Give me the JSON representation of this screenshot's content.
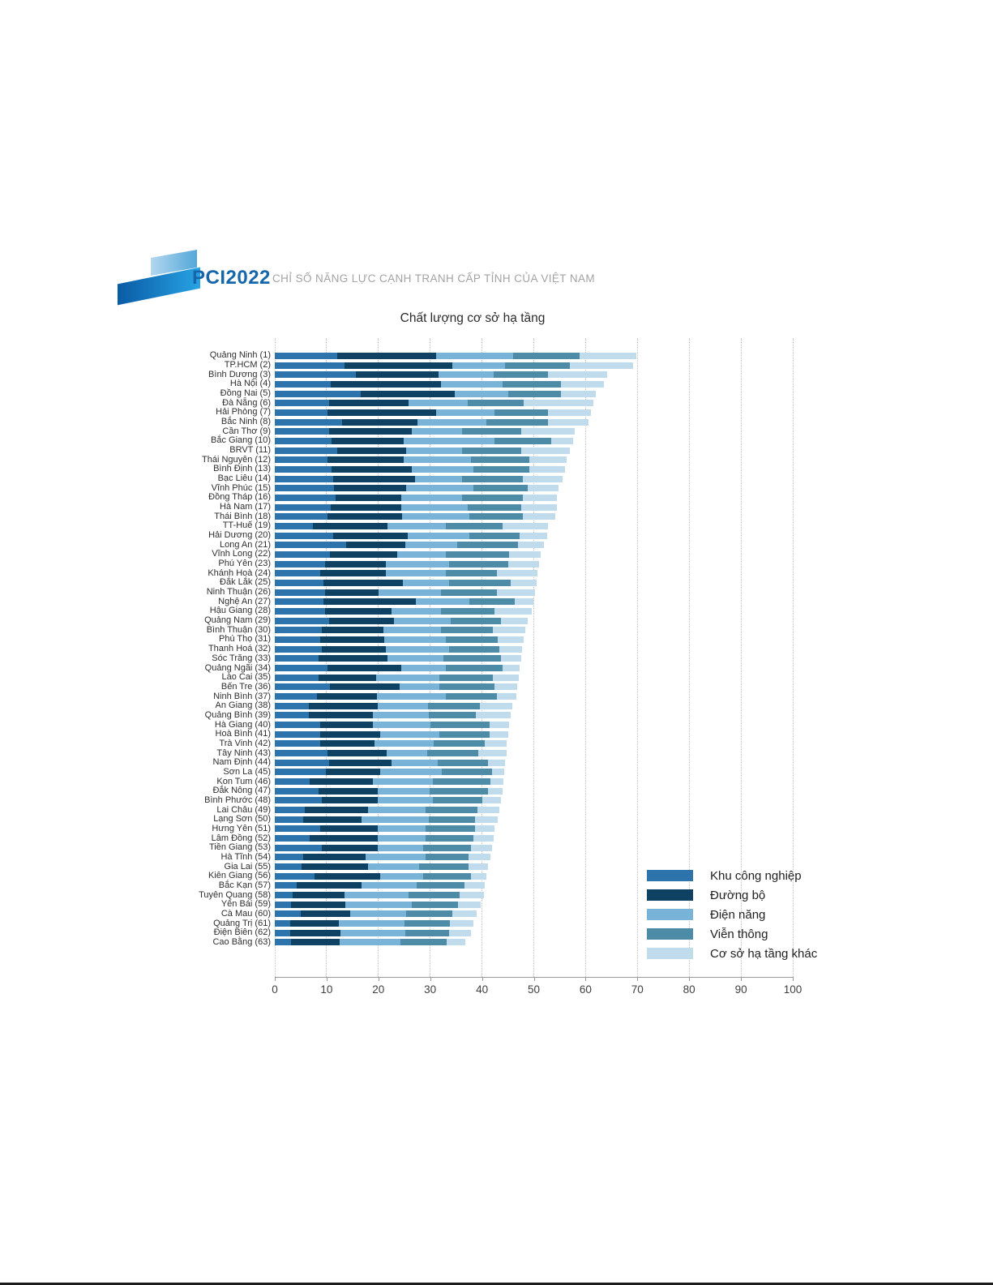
{
  "header": {
    "logo_text": "PCI2022",
    "subtitle": "CHỈ SỐ NĂNG LỰC CẠNH TRANH CẤP TỈNH CỦA VIỆT NAM"
  },
  "chart_data": {
    "type": "bar",
    "orientation": "horizontal",
    "stacked": true,
    "title": "Chất lượng cơ sở hạ tầng",
    "xlabel": "",
    "ylabel": "",
    "xlim": [
      0,
      100
    ],
    "x_ticks": [
      0,
      10,
      20,
      30,
      40,
      50,
      60,
      70,
      80,
      90,
      100
    ],
    "grid": "vertical-dotted",
    "legend_position": "bottom-right",
    "series": [
      {
        "name": "Khu công nghiệp",
        "color": "#2e74ac"
      },
      {
        "name": "Đường bộ",
        "color": "#0f4163"
      },
      {
        "name": "Điện năng",
        "color": "#7ab3d8"
      },
      {
        "name": "Viễn thông",
        "color": "#4e8ba7"
      },
      {
        "name": "Cơ sở hạ tầng khác",
        "color": "#c0dbec"
      }
    ],
    "categories": [
      {
        "label": "Quảng Ninh (1)",
        "values": [
          12.1,
          19.0,
          14.9,
          12.9,
          10.9
        ]
      },
      {
        "label": "TP.HCM (2)",
        "values": [
          13.5,
          20.7,
          10.3,
          12.4,
          12.3
        ]
      },
      {
        "label": "Bình Dương (3)",
        "values": [
          15.6,
          16.0,
          10.7,
          10.4,
          11.4
        ]
      },
      {
        "label": "Hà Nội (4)",
        "values": [
          10.8,
          21.3,
          11.9,
          11.3,
          8.3
        ]
      },
      {
        "label": "Đồng Nai (5)",
        "values": [
          16.6,
          18.1,
          10.3,
          10.3,
          6.7
        ]
      },
      {
        "label": "Đà Nẵng (6)",
        "values": [
          10.5,
          15.4,
          11.4,
          10.8,
          13.4
        ]
      },
      {
        "label": "Hải Phòng (7)",
        "values": [
          10.2,
          20.9,
          11.3,
          10.3,
          8.3
        ]
      },
      {
        "label": "Bắc Ninh (8)",
        "values": [
          13.0,
          14.5,
          13.4,
          11.8,
          7.8
        ]
      },
      {
        "label": "Cần Thơ (9)",
        "values": [
          10.5,
          15.9,
          9.8,
          11.4,
          10.3
        ]
      },
      {
        "label": "Bắc Giang (10)",
        "values": [
          11.0,
          13.9,
          17.5,
          10.9,
          4.3
        ]
      },
      {
        "label": "BRVT (11)",
        "values": [
          12.0,
          13.4,
          10.8,
          11.4,
          9.3
        ]
      },
      {
        "label": "Thái Nguyên (12)",
        "values": [
          10.2,
          14.7,
          12.9,
          11.3,
          7.2
        ]
      },
      {
        "label": "Bình Định (13)",
        "values": [
          11.0,
          15.4,
          11.9,
          10.8,
          7.0
        ]
      },
      {
        "label": "Bạc Liêu (14)",
        "values": [
          11.2,
          15.8,
          9.2,
          11.7,
          7.6
        ]
      },
      {
        "label": "Vĩnh Phúc (15)",
        "values": [
          11.5,
          13.9,
          12.9,
          10.6,
          5.9
        ]
      },
      {
        "label": "Đồng Tháp (16)",
        "values": [
          11.8,
          12.6,
          11.8,
          11.7,
          6.6
        ]
      },
      {
        "label": "Hà Nam (17)",
        "values": [
          10.8,
          13.6,
          12.9,
          10.3,
          6.8
        ]
      },
      {
        "label": "Thái Bình (18)",
        "values": [
          10.1,
          14.5,
          12.9,
          10.4,
          6.2
        ]
      },
      {
        "label": "TT-Huế (19)",
        "values": [
          7.3,
          14.5,
          11.3,
          10.9,
          8.7
        ]
      },
      {
        "label": "Hải Dương (20)",
        "values": [
          11.2,
          14.4,
          12.0,
          9.7,
          5.3
        ]
      },
      {
        "label": "Long An (21)",
        "values": [
          13.8,
          11.4,
          10.0,
          11.7,
          5.0
        ]
      },
      {
        "label": "Vĩnh Long (22)",
        "values": [
          10.7,
          13.0,
          9.4,
          12.1,
          6.2
        ]
      },
      {
        "label": "Phú Yên (23)",
        "values": [
          9.7,
          11.8,
          12.2,
          11.3,
          6.0
        ]
      },
      {
        "label": "Khánh Hoà (24)",
        "values": [
          8.7,
          12.8,
          11.6,
          9.8,
          7.8
        ]
      },
      {
        "label": "Đắk Lắk (25)",
        "values": [
          9.4,
          15.3,
          9.0,
          11.8,
          5.0
        ]
      },
      {
        "label": "Ninh Thuận (26)",
        "values": [
          9.7,
          10.3,
          12.1,
          10.8,
          7.4
        ]
      },
      {
        "label": "Nghệ An (27)",
        "values": [
          9.4,
          17.8,
          10.4,
          8.7,
          3.6
        ]
      },
      {
        "label": "Hậu Giang (28)",
        "values": [
          9.7,
          12.8,
          9.6,
          10.3,
          7.2
        ]
      },
      {
        "label": "Quảng Nam (29)",
        "values": [
          10.5,
          12.5,
          11.0,
          9.7,
          5.1
        ]
      },
      {
        "label": "Bình Thuận (30)",
        "values": [
          9.1,
          11.9,
          11.1,
          10.0,
          6.3
        ]
      },
      {
        "label": "Phú Thọ (31)",
        "values": [
          8.7,
          12.4,
          12.0,
          10.0,
          5.0
        ]
      },
      {
        "label": "Thanh Hoá (32)",
        "values": [
          9.1,
          12.4,
          12.2,
          9.7,
          4.4
        ]
      },
      {
        "label": "Sóc Trăng (33)",
        "values": [
          8.4,
          13.4,
          10.8,
          11.1,
          3.9
        ]
      },
      {
        "label": "Quảng Ngãi (34)",
        "values": [
          10.1,
          14.3,
          8.7,
          10.9,
          3.3
        ]
      },
      {
        "label": "Lào Cai (35)",
        "values": [
          8.4,
          11.1,
          12.3,
          10.3,
          5.0
        ]
      },
      {
        "label": "Bến Tre (36)",
        "values": [
          10.7,
          13.4,
          7.7,
          10.6,
          4.4
        ]
      },
      {
        "label": "Ninh Bình (37)",
        "values": [
          8.1,
          11.6,
          13.4,
          9.8,
          3.8
        ]
      },
      {
        "label": "An Giang (38)",
        "values": [
          6.6,
          13.3,
          9.6,
          10.1,
          6.2
        ]
      },
      {
        "label": "Quảng Bình (39)",
        "values": [
          6.6,
          12.3,
          10.8,
          9.1,
          6.7
        ]
      },
      {
        "label": "Hà Giang (40)",
        "values": [
          8.7,
          10.2,
          11.2,
          11.3,
          3.8
        ]
      },
      {
        "label": "Hoà Bình (41)",
        "values": [
          8.7,
          11.6,
          11.5,
          9.6,
          3.6
        ]
      },
      {
        "label": "Trà Vinh (42)",
        "values": [
          8.7,
          10.5,
          11.4,
          10.0,
          4.2
        ]
      },
      {
        "label": "Tây Ninh (43)",
        "values": [
          10.2,
          11.4,
          7.9,
          9.8,
          5.4
        ]
      },
      {
        "label": "Nam Định (44)",
        "values": [
          10.5,
          12.0,
          9.0,
          9.6,
          3.4
        ]
      },
      {
        "label": "Sơn La (45)",
        "values": [
          9.8,
          10.6,
          11.9,
          9.6,
          2.4
        ]
      },
      {
        "label": "Kon Tum (46)",
        "values": [
          6.8,
          12.2,
          11.5,
          11.1,
          2.5
        ]
      },
      {
        "label": "Đắk Nông (47)",
        "values": [
          8.4,
          11.4,
          10.1,
          11.2,
          2.8
        ]
      },
      {
        "label": "Bình Phước (48)",
        "values": [
          9.0,
          10.8,
          10.7,
          9.5,
          3.7
        ]
      },
      {
        "label": "Lai Châu (49)",
        "values": [
          5.8,
          12.2,
          11.1,
          10.1,
          4.2
        ]
      },
      {
        "label": "Lạng Sơn (50)",
        "values": [
          5.5,
          11.2,
          13.0,
          9.0,
          4.4
        ]
      },
      {
        "label": "Hưng Yên (51)",
        "values": [
          8.7,
          11.1,
          9.3,
          9.6,
          3.7
        ]
      },
      {
        "label": "Lâm Đồng (52)",
        "values": [
          6.8,
          13.0,
          9.3,
          9.3,
          3.8
        ]
      },
      {
        "label": "Tiền Giang (53)",
        "values": [
          9.0,
          10.8,
          8.8,
          9.3,
          4.0
        ]
      },
      {
        "label": "Hà Tĩnh (54)",
        "values": [
          5.5,
          12.0,
          11.6,
          8.3,
          4.2
        ]
      },
      {
        "label": "Gia Lai (55)",
        "values": [
          5.2,
          12.8,
          9.8,
          9.6,
          3.7
        ]
      },
      {
        "label": "Kiên Giang (56)",
        "values": [
          7.6,
          12.8,
          8.2,
          9.3,
          3.0
        ]
      },
      {
        "label": "Bắc Kạn (57)",
        "values": [
          4.3,
          12.5,
          10.6,
          9.3,
          3.9
        ]
      },
      {
        "label": "Tuyên Quang (58)",
        "values": [
          3.5,
          10.0,
          12.4,
          9.8,
          4.7
        ]
      },
      {
        "label": "Yên Bái (59)",
        "values": [
          3.2,
          10.4,
          12.8,
          9.0,
          4.4
        ]
      },
      {
        "label": "Cà Mau (60)",
        "values": [
          5.0,
          9.6,
          10.8,
          8.8,
          4.8
        ]
      },
      {
        "label": "Quảng Trị (61)",
        "values": [
          2.9,
          9.4,
          12.8,
          8.7,
          4.5
        ]
      },
      {
        "label": "Điện Biên (62)",
        "values": [
          2.9,
          9.8,
          12.5,
          8.5,
          4.1
        ]
      },
      {
        "label": "Cao Bằng (63)",
        "values": [
          3.2,
          9.3,
          11.7,
          9.0,
          3.6
        ]
      }
    ]
  }
}
